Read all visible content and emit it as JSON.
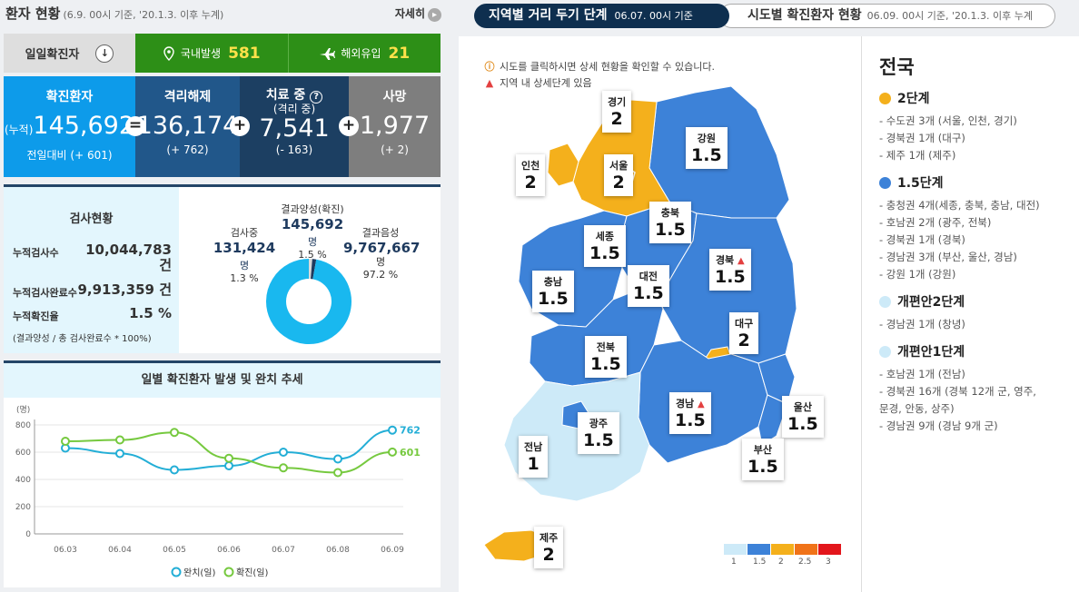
{
  "header": {
    "title": "환자 현황",
    "subtitle": "(6.9. 00시 기준, '20.1.3. 이후 누계)",
    "more_label": "자세히"
  },
  "daily": {
    "label": "일일확진자",
    "domestic_label": "국내발생",
    "domestic_value": "581",
    "overseas_label": "해외유입",
    "overseas_value": "21"
  },
  "summary": {
    "confirmed": {
      "label": "확진환자",
      "prefix": "(누적)",
      "value": "145,692",
      "delta": "전일대비 (+ 601)",
      "color": "#0d9bea"
    },
    "released": {
      "label": "격리해제",
      "value": "136,174",
      "delta": "(+ 762)",
      "color": "#21578a"
    },
    "treating": {
      "label": "치료 중",
      "sub": "(격리 중)",
      "value": "7,541",
      "delta": "(- 163)",
      "color": "#1c3f62"
    },
    "deaths": {
      "label": "사망",
      "value": "1,977",
      "delta": "(+ 2)",
      "color": "#7e7e7e"
    },
    "op_eq": "=",
    "op_plus": "+"
  },
  "tests": {
    "title": "검사현황",
    "rows": [
      {
        "key": "누적검사수",
        "value": "10,044,783",
        "unit": "건"
      },
      {
        "key": "누적검사완료수",
        "value": "9,913,359",
        "unit": "건"
      },
      {
        "key": "누적확진율",
        "value": "1.5",
        "unit": "%"
      }
    ],
    "formula": "(결과양성 / 총 검사완료수 * 100%)",
    "donut": {
      "testing": {
        "label": "검사중",
        "value": "131,424",
        "unit": "명",
        "pct": "1.3 %",
        "share": 1.3
      },
      "positive": {
        "label": "결과양성(확진)",
        "value": "145,692",
        "unit": "명",
        "pct": "1.5 %",
        "share": 1.5
      },
      "negative": {
        "label": "결과음성",
        "value": "9,767,667",
        "unit": "명",
        "pct": "97.2 %",
        "share": 97.2
      }
    }
  },
  "chart_data": {
    "type": "line",
    "title": "일별 확진환자 발생 및 완치 추세",
    "ylabel": "(명)",
    "x": [
      "06.03",
      "06.04",
      "06.05",
      "06.06",
      "06.07",
      "06.08",
      "06.09"
    ],
    "ylim": [
      0,
      800
    ],
    "yticks": [
      "0",
      "200",
      "400",
      "600",
      "800"
    ],
    "grid": true,
    "legend": "bottom",
    "series": [
      {
        "name": "완치(일)",
        "values": [
          630,
          590,
          470,
          500,
          600,
          550,
          762
        ],
        "color": "#23aed6"
      },
      {
        "name": "확진(일)",
        "values": [
          680,
          690,
          745,
          555,
          485,
          450,
          601
        ],
        "color": "#76c93f"
      }
    ],
    "end_labels": [
      "762",
      "601"
    ]
  },
  "tabs": {
    "active": {
      "label": "지역별 거리 두기 단계",
      "date": "06.07. 00시 기준"
    },
    "inactive": {
      "label": "시도별 확진환자 현황",
      "date": "06.09. 00시 기준, '20.1.3. 이후 누계"
    }
  },
  "map": {
    "note1": "시도를 클릭하시면 상세 현황을 확인할 수 있습니다.",
    "note2": "지역 내 상세단계 있음",
    "colors": {
      "1": "#cdeaf8",
      "1.5": "#3d82d8",
      "2": "#f4b01c",
      "2.5": "#f07319",
      "3": "#e3161c"
    },
    "regions": [
      {
        "name": "경기",
        "level": "2"
      },
      {
        "name": "인천",
        "level": "2"
      },
      {
        "name": "서울",
        "level": "2"
      },
      {
        "name": "강원",
        "level": "1.5"
      },
      {
        "name": "충북",
        "level": "1.5"
      },
      {
        "name": "세종",
        "level": "1.5"
      },
      {
        "name": "경북",
        "level": "1.5"
      },
      {
        "name": "대전",
        "level": "1.5"
      },
      {
        "name": "충남",
        "level": "1.5"
      },
      {
        "name": "대구",
        "level": "2"
      },
      {
        "name": "전북",
        "level": "1.5"
      },
      {
        "name": "경남",
        "level": "1.5"
      },
      {
        "name": "울산",
        "level": "1.5"
      },
      {
        "name": "광주",
        "level": "1.5"
      },
      {
        "name": "전남",
        "level": "1"
      },
      {
        "name": "부산",
        "level": "1.5"
      },
      {
        "name": "제주",
        "level": "2"
      }
    ],
    "legend": [
      "1",
      "1.5",
      "2",
      "2.5",
      "3"
    ]
  },
  "national": {
    "title": "전국",
    "sections": [
      {
        "title": "2단계",
        "color": "#f4b01c",
        "items": [
          "- 수도권 3개 (서울, 인천, 경기)",
          "- 경북권 1개 (대구)",
          "- 제주 1개 (제주)"
        ]
      },
      {
        "title": "1.5단계",
        "color": "#3d82d8",
        "items": [
          "- 충청권 4개(세종, 충북, 충남, 대전)",
          "- 호남권 2개 (광주, 전북)",
          "- 경북권 1개 (경북)",
          "- 경남권 3개 (부산, 울산, 경남)",
          "- 강원 1개 (강원)"
        ]
      },
      {
        "title": "개편안2단계",
        "color": "#cdeaf8",
        "items": [
          "- 경남권 1개 (창녕)"
        ]
      },
      {
        "title": "개편안1단계",
        "color": "#cdeaf8",
        "items": [
          "- 호남권 1개 (전남)",
          "- 경북권 16개 (경북 12개 군, 영주,",
          "  문경, 안동, 상주)",
          "- 경남권 9개 (경남 9개 군)"
        ]
      }
    ]
  }
}
